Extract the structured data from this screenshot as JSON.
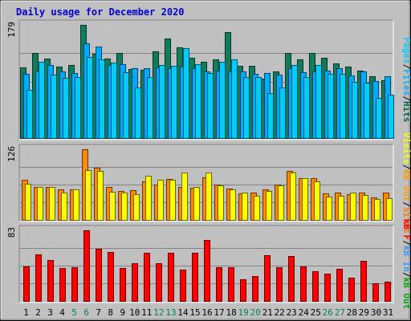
{
  "chart_data": {
    "type": "bar",
    "title": "Daily usage for December 2020",
    "categories": [
      "1",
      "2",
      "3",
      "4",
      "5",
      "6",
      "7",
      "8",
      "9",
      "10",
      "11",
      "12",
      "13",
      "14",
      "15",
      "16",
      "17",
      "18",
      "19",
      "20",
      "21",
      "22",
      "23",
      "24",
      "25",
      "26",
      "27",
      "28",
      "29",
      "30",
      "31"
    ],
    "weekend_days": [
      "5",
      "6",
      "12",
      "13",
      "19",
      "20",
      "26",
      "27"
    ],
    "panels": [
      {
        "id": "top",
        "ymax": 179,
        "ymax_label": "179",
        "side_label": [
          "Pages",
          "/",
          "Files",
          "/",
          "Hits"
        ],
        "side_label_colors": [
          "#00ccff",
          "#000000",
          "#00aaff",
          "#000000",
          "#006650"
        ],
        "series": [
          {
            "name": "Hits",
            "color": "#107c5c",
            "values": [
              112,
              135,
              126,
              113,
              115,
              179,
              133,
              126,
              135,
              109,
              108,
              137,
              157,
              144,
              127,
              121,
              125,
              167,
              114,
              114,
              94,
              106,
              134,
              124,
              135,
              127,
              118,
              113,
              107,
              98,
              91
            ]
          },
          {
            "name": "Files",
            "color": "#00aaff",
            "values": [
              101,
              105,
              115,
              105,
              103,
              150,
              145,
              115,
              117,
              110,
              111,
              112,
              111,
              113,
              110,
              106,
              107,
              106,
              105,
              101,
              103,
              100,
              110,
              104,
              105,
              107,
              110,
              99,
              105,
              90,
              98
            ]
          },
          {
            "name": "Pages",
            "color": "#00ccff",
            "values": [
              76,
              121,
              100,
              95,
              97,
              128,
              125,
              119,
              104,
              80,
              97,
              115,
              114,
              142,
              117,
              103,
              121,
              124,
              97,
              97,
              71,
              80,
              116,
              96,
              116,
              102,
              101,
              89,
              87,
              64,
              69
            ]
          }
        ]
      },
      {
        "id": "middle",
        "ymax": 126,
        "ymax_label": "126",
        "side_label": [
          "Visits",
          "/",
          "KB Out",
          "/",
          "Sites"
        ],
        "side_label_colors": [
          "#ffff00",
          "#000000",
          "#ff9900",
          "#000000",
          "#ff7700"
        ],
        "series": [
          {
            "name": "Sites",
            "color": "#ff8800",
            "values": [
              72,
              59,
              59,
              54,
              55,
              126,
              93,
              58,
              51,
              53,
              69,
              63,
              73,
              59,
              57,
              76,
              63,
              56,
              47,
              49,
              54,
              63,
              88,
              75,
              74,
              47,
              49,
              46,
              48,
              40,
              48
            ]
          },
          {
            "name": "Visits",
            "color": "#ffff00",
            "values": [
              64,
              59,
              58,
              49,
              54,
              89,
              88,
              50,
              49,
              46,
              79,
              72,
              72,
              85,
              58,
              84,
              62,
              54,
              48,
              43,
              51,
              61,
              85,
              74,
              69,
              41,
              43,
              49,
              44,
              37,
              39
            ]
          }
        ]
      },
      {
        "id": "bottom",
        "ymax": 83,
        "ymax_label": "83",
        "side_label": [
          "kB F",
          "/",
          "kB In",
          "/",
          "kB Out"
        ],
        "side_label_colors": [
          "#ff0000",
          "#000000",
          "#3399ff",
          "#000000",
          "#00aa00"
        ],
        "series": [
          {
            "name": "kB F",
            "color": "#ff0000",
            "values": [
              41,
              55,
              48,
              39,
              40,
              83,
              61,
              58,
              39,
              44,
              57,
              44,
              57,
              37,
              57,
              72,
              40,
              40,
              25,
              29,
              54,
              40,
              53,
              41,
              35,
              32,
              38,
              27,
              47,
              21,
              23
            ]
          }
        ]
      }
    ]
  },
  "colors": {
    "background": "#c0c0c0",
    "title": "#0000cc",
    "day_label": "#000000",
    "weekend_day_label": "#008050"
  }
}
